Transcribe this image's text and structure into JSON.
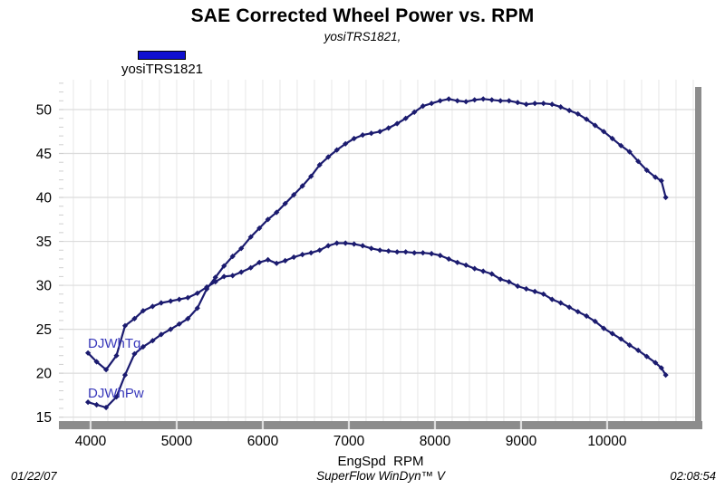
{
  "header": {
    "title": "SAE Corrected Wheel Power vs. RPM",
    "subtitle": "yosiTRS1821,"
  },
  "legend": {
    "label": "yosiTRS1821",
    "swatch_color": "#1010d0"
  },
  "footer": {
    "date": "01/22/07",
    "software": "SuperFlow WinDyn™ V",
    "time": "02:08:54"
  },
  "chart_data": {
    "type": "line",
    "title": "SAE Corrected Wheel Power vs. RPM",
    "subtitle": "yosiTRS1821,",
    "xlabel": "EngSpd  RPM",
    "ylabel": "",
    "legend": "yosiTRS1821",
    "legend_position": "top-left",
    "grid": true,
    "marker": "diamond",
    "line_color": "#1b1b6f",
    "series_label_color": "#3939bb",
    "xlim": [
      3632,
      11032
    ],
    "ylim": [
      14.55,
      53.4
    ],
    "x_ticks": [
      4000,
      5000,
      6000,
      7000,
      8000,
      9000,
      10000
    ],
    "y_ticks": [
      15,
      20,
      25,
      30,
      35,
      40,
      45,
      50
    ],
    "x_minor_step": 200,
    "y_minor_step": 1,
    "x": [
      3970,
      4070,
      4180,
      4300,
      4400,
      4510,
      4610,
      4720,
      4820,
      4930,
      5030,
      5130,
      5240,
      5350,
      5450,
      5550,
      5650,
      5750,
      5860,
      5960,
      6060,
      6160,
      6260,
      6360,
      6460,
      6560,
      6660,
      6760,
      6860,
      6960,
      7060,
      7160,
      7260,
      7360,
      7460,
      7560,
      7660,
      7760,
      7860,
      7960,
      8060,
      8160,
      8260,
      8360,
      8460,
      8560,
      8660,
      8760,
      8860,
      8960,
      9060,
      9160,
      9260,
      9360,
      9460,
      9560,
      9660,
      9760,
      9860,
      9960,
      10060,
      10160,
      10260,
      10360,
      10460,
      10560,
      10630,
      10680
    ],
    "series": [
      {
        "name": "DJWhTq",
        "values": [
          22.3,
          21.3,
          20.4,
          22.0,
          25.4,
          26.2,
          27.1,
          27.6,
          28.0,
          28.2,
          28.4,
          28.6,
          29.1,
          29.8,
          30.4,
          31.0,
          31.1,
          31.5,
          32.0,
          32.6,
          32.9,
          32.5,
          32.8,
          33.2,
          33.5,
          33.7,
          34.0,
          34.5,
          34.8,
          34.8,
          34.7,
          34.5,
          34.2,
          34.0,
          33.9,
          33.8,
          33.8,
          33.7,
          33.7,
          33.6,
          33.4,
          33.0,
          32.6,
          32.3,
          31.9,
          31.6,
          31.3,
          30.7,
          30.4,
          29.9,
          29.6,
          29.3,
          29.0,
          28.4,
          28.0,
          27.5,
          27.0,
          26.5,
          25.9,
          25.1,
          24.5,
          23.9,
          23.2,
          22.6,
          21.9,
          21.2,
          20.6,
          19.8
        ]
      },
      {
        "name": "DJWhPw",
        "values": [
          16.7,
          16.4,
          16.1,
          17.3,
          19.8,
          22.2,
          23.0,
          23.7,
          24.4,
          25.0,
          25.6,
          26.2,
          27.4,
          29.6,
          30.9,
          32.2,
          33.3,
          34.2,
          35.5,
          36.5,
          37.5,
          38.3,
          39.3,
          40.3,
          41.3,
          42.4,
          43.7,
          44.6,
          45.4,
          46.1,
          46.7,
          47.1,
          47.3,
          47.5,
          47.9,
          48.4,
          49.0,
          49.7,
          50.4,
          50.7,
          51.0,
          51.2,
          51.0,
          50.9,
          51.1,
          51.2,
          51.1,
          51.0,
          51.0,
          50.8,
          50.6,
          50.7,
          50.7,
          50.6,
          50.3,
          49.9,
          49.5,
          48.9,
          48.2,
          47.5,
          46.7,
          45.9,
          45.2,
          44.1,
          43.1,
          42.3,
          41.9,
          40.0
        ]
      }
    ]
  }
}
